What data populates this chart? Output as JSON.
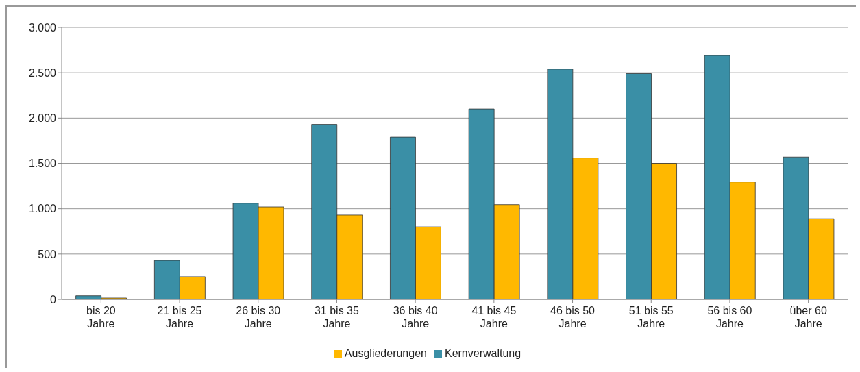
{
  "chart_data": {
    "type": "bar",
    "categories": [
      "bis 20 Jahre",
      "21 bis 25 Jahre",
      "26 bis 30 Jahre",
      "31 bis 35 Jahre",
      "36 bis 40 Jahre",
      "41 bis 45 Jahre",
      "46 bis 50 Jahre",
      "51 bis 55 Jahre",
      "56 bis 60 Jahre",
      "über 60 Jahre"
    ],
    "series": [
      {
        "name": "Kernverwaltung",
        "color": "#3a8fa6",
        "values": [
          40,
          430,
          1060,
          1930,
          1790,
          2100,
          2540,
          2490,
          2690,
          1570
        ]
      },
      {
        "name": "Ausgliederungen",
        "color": "#ffb800",
        "values": [
          15,
          250,
          1020,
          930,
          800,
          1045,
          1560,
          1500,
          1295,
          890
        ]
      }
    ],
    "ylim": [
      0,
      3000
    ],
    "yticks": [
      {
        "value": 0,
        "label": "0"
      },
      {
        "value": 500,
        "label": "500"
      },
      {
        "value": 1000,
        "label": "1.000"
      },
      {
        "value": 1500,
        "label": "1.500"
      },
      {
        "value": 2000,
        "label": "2.000"
      },
      {
        "value": 2500,
        "label": "2.500"
      },
      {
        "value": 3000,
        "label": "3.000"
      }
    ],
    "grid": "y",
    "legend": "bottom"
  }
}
